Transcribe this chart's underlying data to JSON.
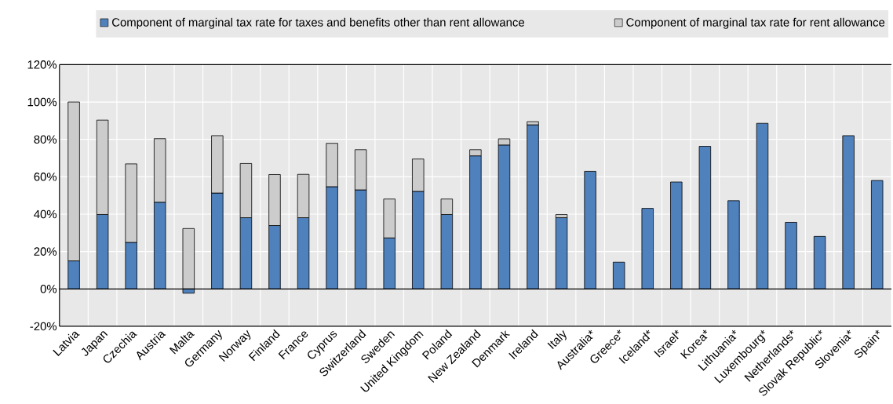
{
  "chart_data": {
    "type": "bar",
    "stacked": true,
    "categories": [
      "Latvia",
      "Japan",
      "Czechia",
      "Austria",
      "Malta",
      "Germany",
      "Norway",
      "Finland",
      "France",
      "Cyprus",
      "Switzerland",
      "Sweden",
      "United Kingdom",
      "Poland",
      "New Zealand",
      "Denmark",
      "Ireland",
      "Italy",
      "Australia*",
      "Greece*",
      "Iceland*",
      "Israel*",
      "Korea*",
      "Lithuania*",
      "Luxembourg*",
      "Netherlands*",
      "Slovak Republic*",
      "Slovenia*",
      "Spain*"
    ],
    "series": [
      {
        "name": "Component of marginal tax rate for taxes and benefits other than rent allowance",
        "color": "#4f81bd",
        "values": [
          15,
          39.8,
          24.9,
          46.4,
          -2.3,
          51.3,
          38.1,
          33.9,
          38.1,
          54.7,
          53,
          27.3,
          52.2,
          39.8,
          71.2,
          77,
          87.8,
          38.1,
          62.9,
          14.3,
          43.1,
          57.2,
          76.3,
          47.2,
          88.6,
          35.6,
          28.1,
          82,
          58
        ]
      },
      {
        "name": "Component of marginal tax rate for rent allowance",
        "color": "#cccccc",
        "values": [
          85,
          50.5,
          42,
          34,
          32.3,
          30.7,
          29,
          27.3,
          23.2,
          23.2,
          21.5,
          20.8,
          17.3,
          8.3,
          3.3,
          3.3,
          1.7,
          1.7,
          null,
          null,
          null,
          null,
          null,
          null,
          null,
          null,
          null,
          null,
          null
        ]
      }
    ],
    "ylim": [
      -20,
      120
    ],
    "yticks": [
      {
        "value": -20,
        "label": "-20%"
      },
      {
        "value": 0,
        "label": "0%"
      },
      {
        "value": 20,
        "label": "20%"
      },
      {
        "value": 40,
        "label": "40%"
      },
      {
        "value": 60,
        "label": "60%"
      },
      {
        "value": 80,
        "label": "80%"
      },
      {
        "value": 100,
        "label": "100%"
      },
      {
        "value": 120,
        "label": "120%"
      }
    ],
    "grid": true,
    "legend": "top"
  }
}
